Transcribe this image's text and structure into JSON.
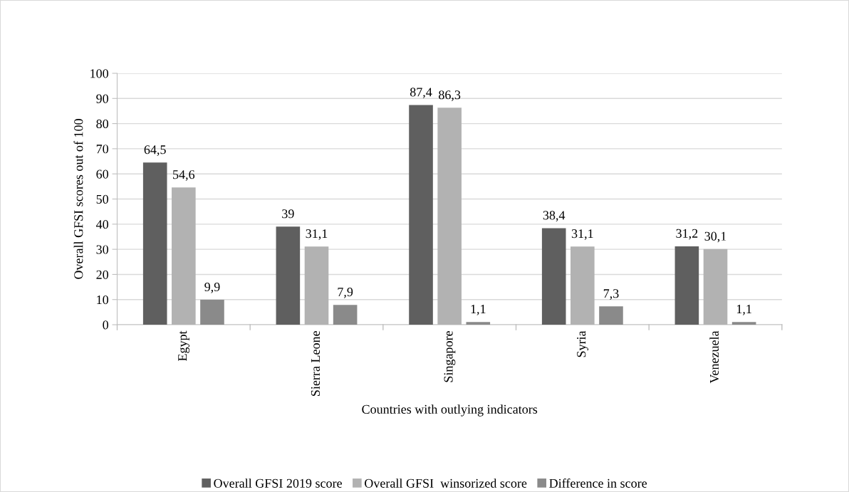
{
  "chart_data": {
    "type": "bar",
    "xlabel": "Countries with outlying indicators",
    "ylabel": "Overall GFSI scores out of 100",
    "categories": [
      "Egypt",
      "Sierra Leone",
      "Singapore",
      "Syria",
      "Venezuela"
    ],
    "series": [
      {
        "name": "Overall GFSI 2019 score",
        "color": "#5f5f5f",
        "values": [
          64.5,
          39,
          87.4,
          38.4,
          31.2
        ],
        "value_labels": [
          "64,5",
          "39",
          "87,4",
          "38,4",
          "31,2"
        ]
      },
      {
        "name": "Overall GFSI  winsorized score",
        "color": "#b2b2b2",
        "values": [
          54.6,
          31.1,
          86.3,
          31.1,
          30.1
        ],
        "value_labels": [
          "54,6",
          "31,1",
          "86,3",
          "31,1",
          "30,1"
        ]
      },
      {
        "name": "Difference in score",
        "color": "#8a8a8a",
        "values": [
          9.9,
          7.9,
          1.1,
          7.3,
          1.1
        ],
        "value_labels": [
          "9,9",
          "7,9",
          "1,1",
          "7,3",
          "1,1"
        ]
      }
    ],
    "ylim": [
      0,
      100
    ],
    "yticks": [
      0,
      10,
      20,
      30,
      40,
      50,
      60,
      70,
      80,
      90,
      100
    ],
    "grid": "y",
    "legend": "bottom"
  }
}
